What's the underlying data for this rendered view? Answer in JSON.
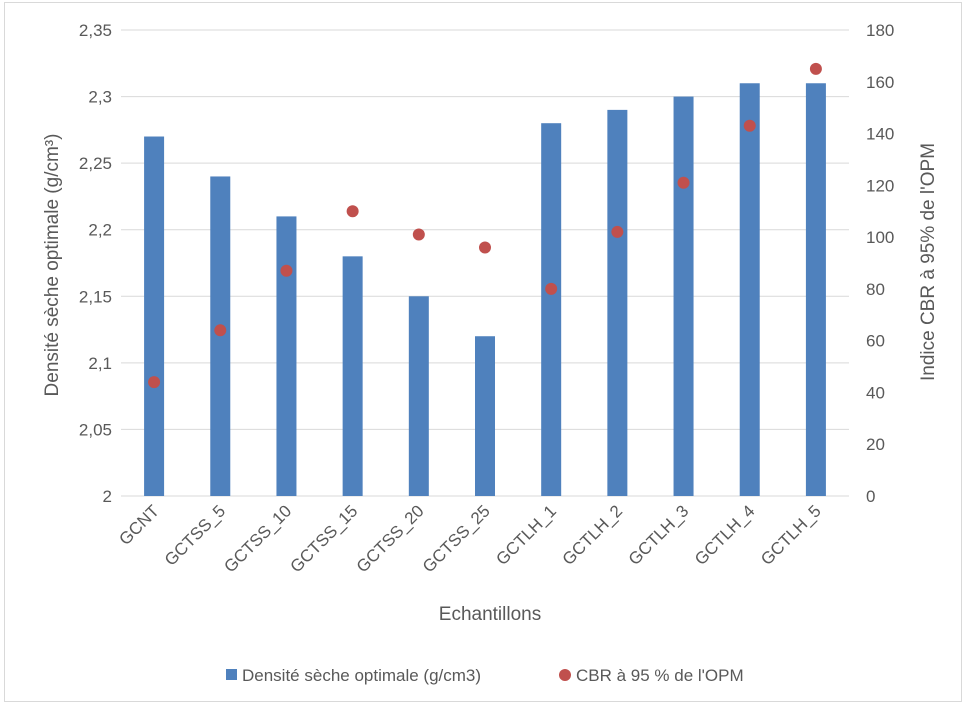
{
  "chart_data": {
    "type": "bar",
    "categories": [
      "GCNT",
      "GCTSS_5",
      "GCTSS_10",
      "GCTSS_15",
      "GCTSS_20",
      "GCTSS_25",
      "GCTLH_1",
      "GCTLH_2",
      "GCTLH_3",
      "GCTLH_4",
      "GCTLH_5"
    ],
    "series": [
      {
        "name": "Densité sèche optimale (g/cm3)",
        "type": "bar",
        "axis": "left",
        "color": "#4f81bd",
        "values": [
          2.27,
          2.24,
          2.21,
          2.18,
          2.15,
          2.12,
          2.28,
          2.29,
          2.3,
          2.31,
          2.31
        ]
      },
      {
        "name": "CBR à 95 % de l'OPM",
        "type": "scatter",
        "axis": "right",
        "color": "#c0504d",
        "values": [
          44,
          64,
          87,
          110,
          101,
          96,
          80,
          102,
          121,
          143,
          165
        ]
      }
    ],
    "xlabel": "Echantillons",
    "ylabel": "Densité sèche optimale (g/cm³)",
    "y2label": "Indice CBR à 95% de l'OPM",
    "ylim": [
      2,
      2.35
    ],
    "y2lim": [
      0,
      180
    ],
    "yticks": [
      "2",
      "2,05",
      "2,1",
      "2,15",
      "2,2",
      "2,25",
      "2,3",
      "2,35"
    ],
    "y2ticks": [
      "0",
      "20",
      "40",
      "60",
      "80",
      "100",
      "120",
      "140",
      "160",
      "180"
    ],
    "grid": true,
    "legend": "bottom"
  }
}
